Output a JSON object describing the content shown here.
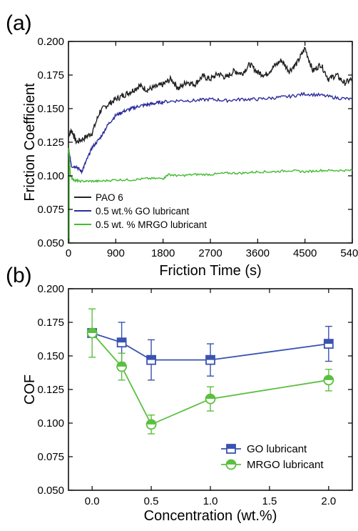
{
  "chart_data": [
    {
      "panel": "(a)",
      "type": "line",
      "xlabel": "Friction Time (s)",
      "ylabel": "Friction Coefficient",
      "xlim": [
        0,
        5400
      ],
      "ylim": [
        0.05,
        0.2
      ],
      "xticks": [
        "0",
        "900",
        "1800",
        "2700",
        "3600",
        "4500",
        "5400"
      ],
      "yticks": [
        "0.050",
        "0.075",
        "0.100",
        "0.125",
        "0.150",
        "0.175",
        "0.200"
      ],
      "legend_position": "bottom-left",
      "series": [
        {
          "name": "PAO 6",
          "color": "#222222",
          "x": [
            0,
            60,
            150,
            300,
            450,
            600,
            750,
            900,
            1050,
            1200,
            1350,
            1500,
            1650,
            1800,
            1950,
            2100,
            2250,
            2400,
            2550,
            2700,
            2850,
            3000,
            3150,
            3300,
            3450,
            3600,
            3750,
            3900,
            4050,
            4200,
            4350,
            4500,
            4650,
            4800,
            4950,
            5100,
            5250,
            5400
          ],
          "y": [
            0.13,
            0.134,
            0.125,
            0.128,
            0.132,
            0.148,
            0.153,
            0.157,
            0.16,
            0.163,
            0.167,
            0.164,
            0.166,
            0.168,
            0.172,
            0.165,
            0.17,
            0.168,
            0.174,
            0.172,
            0.176,
            0.173,
            0.178,
            0.176,
            0.183,
            0.177,
            0.175,
            0.181,
            0.186,
            0.178,
            0.184,
            0.195,
            0.178,
            0.183,
            0.172,
            0.175,
            0.169,
            0.172
          ]
        },
        {
          "name": "0.5 wt.% GO lubricant",
          "color": "#2c2c9c",
          "x": [
            0,
            60,
            150,
            250,
            350,
            450,
            600,
            750,
            900,
            1050,
            1200,
            1350,
            1500,
            1650,
            1800,
            2100,
            2400,
            2700,
            3000,
            3300,
            3600,
            3900,
            4200,
            4500,
            4800,
            5100,
            5400
          ],
          "y": [
            0.12,
            0.107,
            0.107,
            0.103,
            0.112,
            0.121,
            0.128,
            0.138,
            0.145,
            0.148,
            0.15,
            0.152,
            0.153,
            0.154,
            0.155,
            0.156,
            0.156,
            0.157,
            0.156,
            0.157,
            0.157,
            0.158,
            0.159,
            0.161,
            0.16,
            0.158,
            0.157
          ]
        },
        {
          "name": "0.5 wt. % MRGO lubricant",
          "color": "#44bb33",
          "x": [
            0,
            40,
            100,
            200,
            400,
            600,
            900,
            1200,
            1500,
            1800,
            1900,
            2100,
            2400,
            2700,
            3000,
            3300,
            3600,
            3900,
            4200,
            4500,
            4800,
            5100,
            5400
          ],
          "y": [
            0.12,
            0.1,
            0.097,
            0.096,
            0.096,
            0.096,
            0.097,
            0.097,
            0.098,
            0.098,
            0.101,
            0.1,
            0.101,
            0.101,
            0.102,
            0.102,
            0.103,
            0.103,
            0.104,
            0.103,
            0.104,
            0.104,
            0.104
          ]
        }
      ]
    },
    {
      "panel": "(b)",
      "type": "scatter",
      "xlabel": "Concentration (wt.%)",
      "ylabel": "COF",
      "xlim": [
        -0.2,
        2.2
      ],
      "ylim": [
        0.05,
        0.2
      ],
      "xticks": [
        "0.0",
        "0.5",
        "1.0",
        "1.5",
        "2.0"
      ],
      "yticks": [
        "0.050",
        "0.075",
        "0.100",
        "0.125",
        "0.150",
        "0.175",
        "0.200"
      ],
      "legend_position": "bottom-right",
      "series": [
        {
          "name": "GO lubricant",
          "color": "#3a52b0",
          "marker": "square",
          "x": [
            0,
            0.25,
            0.5,
            1.0,
            2.0
          ],
          "y": [
            0.167,
            0.16,
            0.147,
            0.147,
            0.159
          ],
          "err": [
            0.002,
            0.015,
            0.015,
            0.012,
            0.013
          ]
        },
        {
          "name": "MRGO lubricant",
          "color": "#5bbf3f",
          "marker": "circle",
          "x": [
            0,
            0.25,
            0.5,
            1.0,
            2.0
          ],
          "y": [
            0.167,
            0.142,
            0.099,
            0.118,
            0.132
          ],
          "err": [
            0.018,
            0.01,
            0.007,
            0.009,
            0.008
          ]
        }
      ]
    }
  ]
}
